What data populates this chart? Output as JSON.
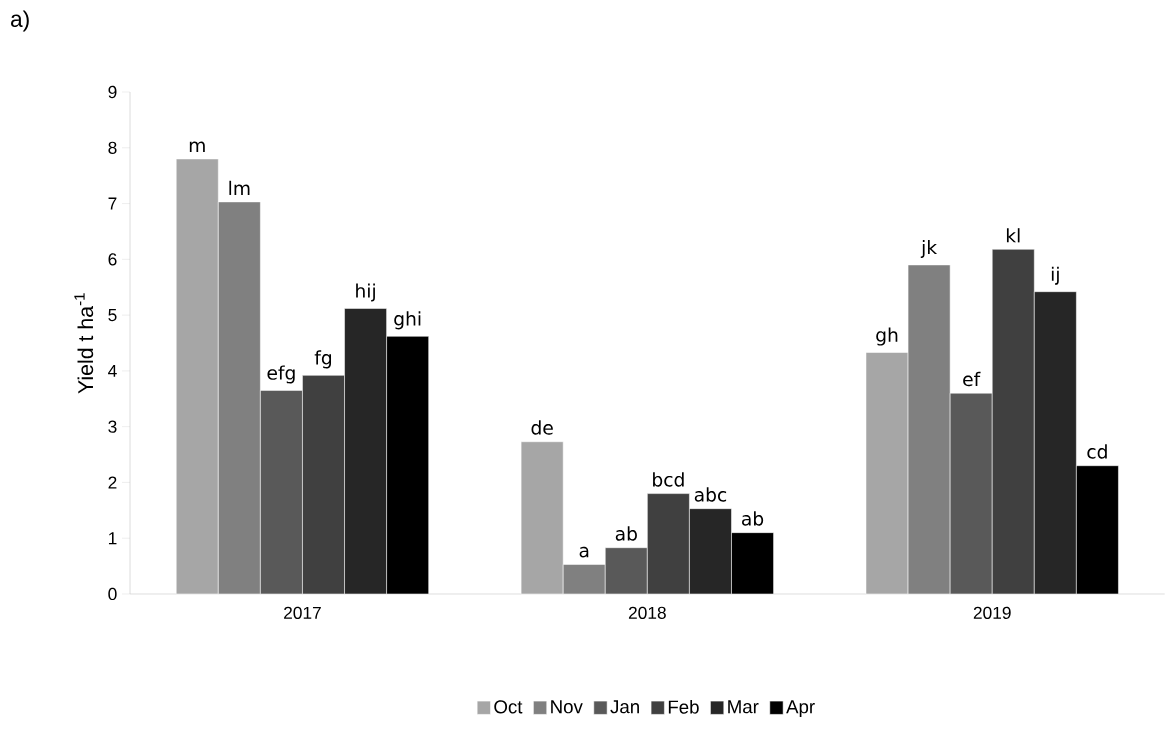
{
  "chart_data": {
    "type": "bar",
    "ylabel": "Yield t ha$^{-1}$",
    "annotations": [
      "a)"
    ],
    "categories": [
      "2017",
      "2018",
      "2019"
    ],
    "series": [
      {
        "name": "Oct",
        "color": "#a6a6a6",
        "values": [
          7.8,
          2.73,
          4.33
        ],
        "value_labels": [
          "m",
          "de",
          "gh"
        ]
      },
      {
        "name": "Nov",
        "color": "#808080",
        "values": [
          7.03,
          0.53,
          5.9
        ],
        "value_labels": [
          "lm",
          "a",
          "jk"
        ]
      },
      {
        "name": "Jan",
        "color": "#595959",
        "values": [
          3.65,
          0.83,
          3.6
        ],
        "value_labels": [
          "efg",
          "ab",
          "ef"
        ]
      },
      {
        "name": "Feb",
        "color": "#404040",
        "values": [
          3.92,
          1.8,
          6.18
        ],
        "value_labels": [
          "fg",
          "bcd",
          "kl"
        ]
      },
      {
        "name": "Mar",
        "color": "#262626",
        "values": [
          5.12,
          1.53,
          5.42
        ],
        "value_labels": [
          "hij",
          "abc",
          "ij"
        ]
      },
      {
        "name": "Apr",
        "color": "#000000",
        "values": [
          4.62,
          1.1,
          2.3
        ],
        "value_labels": [
          "ghi",
          "ab",
          "cd"
        ]
      }
    ],
    "ylim": [
      0,
      9
    ],
    "yticks": [
      0,
      1,
      2,
      3,
      4,
      5,
      6,
      7,
      8,
      9
    ],
    "grid": false,
    "legend": "bottom"
  }
}
